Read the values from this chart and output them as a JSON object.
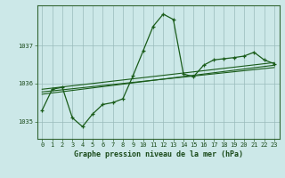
{
  "title": "Graphe pression niveau de la mer (hPa)",
  "x_values": [
    0,
    1,
    2,
    3,
    4,
    5,
    6,
    7,
    8,
    9,
    10,
    11,
    12,
    13,
    14,
    15,
    16,
    17,
    18,
    19,
    20,
    21,
    22,
    23
  ],
  "main_line": [
    1035.3,
    1035.85,
    1035.9,
    1035.1,
    1034.87,
    1035.2,
    1035.45,
    1035.5,
    1035.6,
    1036.2,
    1036.85,
    1037.5,
    1037.82,
    1037.68,
    1036.25,
    1036.18,
    1036.48,
    1036.62,
    1036.65,
    1036.68,
    1036.72,
    1036.82,
    1036.62,
    1036.52
  ],
  "trend_lines": [
    [
      [
        0,
        23
      ],
      [
        1035.85,
        1036.55
      ]
    ],
    [
      [
        0,
        23
      ],
      [
        1035.72,
        1036.48
      ]
    ],
    [
      [
        0,
        23
      ],
      [
        1035.78,
        1036.42
      ]
    ]
  ],
  "bg_color": "#cce8e8",
  "line_color": "#1a5c1a",
  "grid_color_major": "#99bbbb",
  "grid_color_minor": "#bbdddd",
  "text_color": "#1a4a1a",
  "spine_color": "#336633",
  "ylim": [
    1034.55,
    1038.05
  ],
  "yticks": [
    1035,
    1036,
    1037
  ],
  "xlim": [
    -0.5,
    23.5
  ],
  "title_fontsize": 6.0,
  "tick_fontsize": 5.0
}
